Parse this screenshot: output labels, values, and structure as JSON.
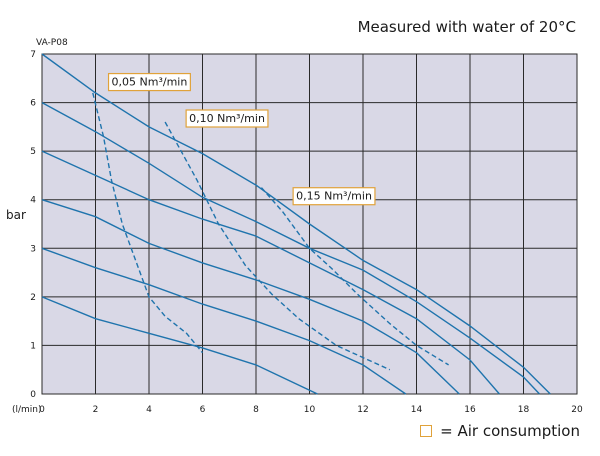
{
  "caption": "Measured with water of 20°C",
  "model": "VA-P08",
  "legend_label": "=  Air consumption",
  "chart_data": {
    "type": "line",
    "title": "",
    "xlabel": "(l/min)",
    "ylabel": "bar",
    "xlim": [
      0,
      20
    ],
    "ylim": [
      0,
      7
    ],
    "xticks": [
      "0",
      "2",
      "4",
      "6",
      "8",
      "10",
      "12",
      "14",
      "16",
      "18",
      "20"
    ],
    "yticks": [
      "0",
      "1",
      "2",
      "3",
      "4",
      "5",
      "6",
      "7"
    ],
    "grid": true,
    "colors": {
      "curve": "#1f74ad",
      "plot_bg": "#d9d8e6",
      "grid": "#2a2a2a",
      "label_border": "#e0a23a"
    },
    "series": [
      {
        "style": "solid",
        "points": [
          [
            0,
            7
          ],
          [
            2,
            6.2
          ],
          [
            4,
            5.5
          ],
          [
            6,
            4.95
          ],
          [
            8,
            4.3
          ],
          [
            10,
            3.5
          ],
          [
            12,
            2.75
          ],
          [
            14,
            2.15
          ],
          [
            16,
            1.4
          ],
          [
            18,
            0.55
          ],
          [
            19,
            0
          ]
        ]
      },
      {
        "style": "solid",
        "points": [
          [
            0,
            6
          ],
          [
            2,
            5.4
          ],
          [
            4,
            4.75
          ],
          [
            6,
            4.05
          ],
          [
            8,
            3.55
          ],
          [
            10,
            3.0
          ],
          [
            12,
            2.55
          ],
          [
            14,
            1.9
          ],
          [
            16,
            1.15
          ],
          [
            18,
            0.35
          ],
          [
            18.6,
            0
          ]
        ]
      },
      {
        "style": "solid",
        "points": [
          [
            0,
            5
          ],
          [
            2,
            4.5
          ],
          [
            4,
            4.0
          ],
          [
            6,
            3.6
          ],
          [
            8,
            3.25
          ],
          [
            10,
            2.7
          ],
          [
            12,
            2.15
          ],
          [
            14,
            1.55
          ],
          [
            16,
            0.7
          ],
          [
            17.1,
            0
          ]
        ]
      },
      {
        "style": "solid",
        "points": [
          [
            0,
            4
          ],
          [
            2,
            3.65
          ],
          [
            4,
            3.1
          ],
          [
            6,
            2.7
          ],
          [
            8,
            2.35
          ],
          [
            10,
            1.95
          ],
          [
            12,
            1.5
          ],
          [
            14,
            0.85
          ],
          [
            15.6,
            0
          ]
        ]
      },
      {
        "style": "solid",
        "points": [
          [
            0,
            3
          ],
          [
            2,
            2.6
          ],
          [
            4,
            2.25
          ],
          [
            6,
            1.85
          ],
          [
            8,
            1.5
          ],
          [
            10,
            1.1
          ],
          [
            12,
            0.6
          ],
          [
            13.6,
            0
          ]
        ]
      },
      {
        "style": "solid",
        "points": [
          [
            0,
            2
          ],
          [
            2,
            1.55
          ],
          [
            4,
            1.25
          ],
          [
            6,
            0.95
          ],
          [
            8,
            0.6
          ],
          [
            10.3,
            0
          ]
        ]
      },
      {
        "name": "0,05 Nm³/min",
        "style": "dashed",
        "points": [
          [
            1.9,
            6.2
          ],
          [
            2.3,
            5.3
          ],
          [
            2.6,
            4.4
          ],
          [
            3.0,
            3.5
          ],
          [
            3.6,
            2.6
          ],
          [
            4.0,
            2.0
          ],
          [
            4.6,
            1.6
          ],
          [
            5.4,
            1.25
          ],
          [
            6.0,
            0.85
          ]
        ]
      },
      {
        "name": "0,10 Nm³/min",
        "style": "dashed",
        "points": [
          [
            4.6,
            5.6
          ],
          [
            5.2,
            5.0
          ],
          [
            5.8,
            4.4
          ],
          [
            6.6,
            3.5
          ],
          [
            7.6,
            2.65
          ],
          [
            8.6,
            2.05
          ],
          [
            9.6,
            1.55
          ],
          [
            11.0,
            1.0
          ],
          [
            12.2,
            0.7
          ],
          [
            13.0,
            0.5
          ]
        ]
      },
      {
        "name": "0,15 Nm³/min",
        "style": "dashed",
        "points": [
          [
            8.2,
            4.25
          ],
          [
            9.0,
            3.75
          ],
          [
            10.0,
            3.0
          ],
          [
            10.8,
            2.6
          ],
          [
            11.8,
            2.05
          ],
          [
            13.0,
            1.45
          ],
          [
            14.0,
            1.0
          ],
          [
            15.2,
            0.6
          ]
        ]
      }
    ],
    "annotations": [
      {
        "text": "0,05 Nm³/min",
        "x": 2.6,
        "y": 6.35
      },
      {
        "text": "0,10 Nm³/min",
        "x": 5.5,
        "y": 5.6
      },
      {
        "text": "0,15 Nm³/min",
        "x": 9.5,
        "y": 4.0
      }
    ]
  }
}
